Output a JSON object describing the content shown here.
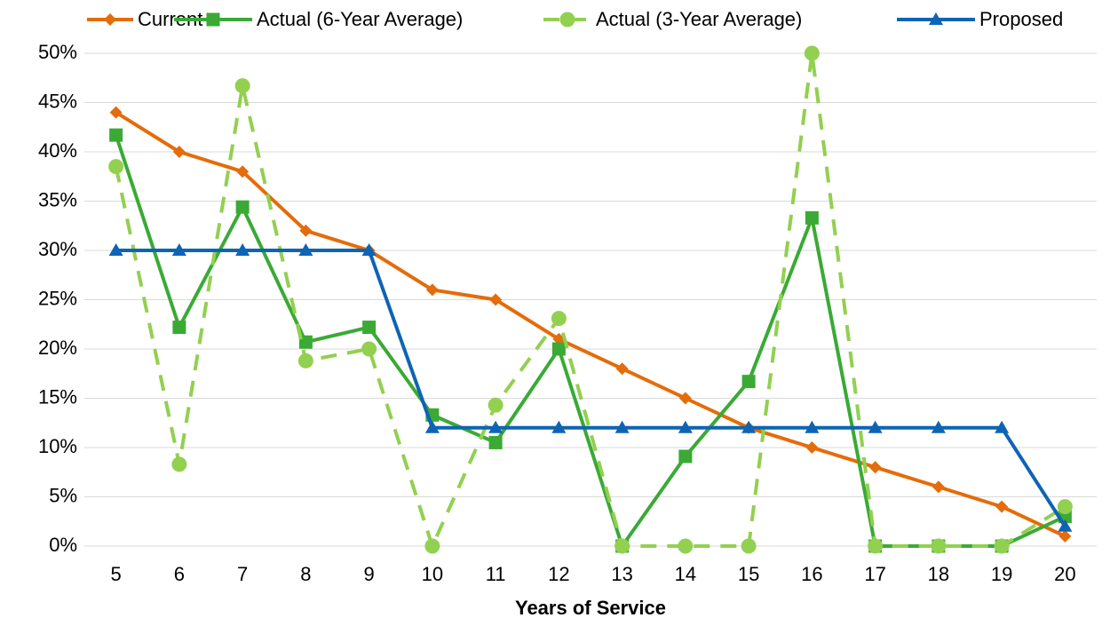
{
  "chart_data": {
    "type": "line",
    "x_label": "Years of Service",
    "categories": [
      "5",
      "6",
      "7",
      "8",
      "9",
      "10",
      "11",
      "12",
      "13",
      "14",
      "15",
      "16",
      "17",
      "18",
      "19",
      "20"
    ],
    "series": [
      {
        "name": "Current",
        "color": "#e46c0a",
        "marker": "diamond",
        "dashed": false,
        "values": [
          44,
          40,
          38,
          32,
          30,
          26,
          25,
          21,
          18,
          15,
          12,
          10,
          8,
          6,
          4,
          1
        ]
      },
      {
        "name": "Actual (6-Year Average)",
        "color": "#3aaa35",
        "marker": "square",
        "dashed": false,
        "values": [
          41.7,
          22.2,
          34.4,
          20.7,
          22.2,
          13.3,
          10.5,
          20,
          0,
          9.1,
          16.7,
          33.3,
          0,
          0,
          0,
          3
        ]
      },
      {
        "name": "Actual (3-Year Average)",
        "color": "#92d050",
        "marker": "circle",
        "dashed": true,
        "values": [
          38.5,
          8.3,
          46.7,
          18.8,
          20,
          0,
          14.3,
          23.1,
          0,
          0,
          0,
          50,
          0,
          0,
          0,
          4
        ]
      },
      {
        "name": "Proposed",
        "color": "#0e64b4",
        "marker": "triangle",
        "dashed": false,
        "values": [
          30,
          30,
          30,
          30,
          30,
          12,
          12,
          12,
          12,
          12,
          12,
          12,
          12,
          12,
          12,
          2
        ]
      }
    ],
    "ylim": [
      0,
      50
    ],
    "yticks": [
      {
        "value": 0,
        "label": "0%"
      },
      {
        "value": 5,
        "label": "5%"
      },
      {
        "value": 10,
        "label": "10%"
      },
      {
        "value": 15,
        "label": "15%"
      },
      {
        "value": 20,
        "label": "20%"
      },
      {
        "value": 25,
        "label": "25%"
      },
      {
        "value": 30,
        "label": "30%"
      },
      {
        "value": 35,
        "label": "35%"
      },
      {
        "value": 40,
        "label": "40%"
      },
      {
        "value": 45,
        "label": "45%"
      },
      {
        "value": 50,
        "label": "50%"
      }
    ],
    "grid": true,
    "legend": "top"
  }
}
